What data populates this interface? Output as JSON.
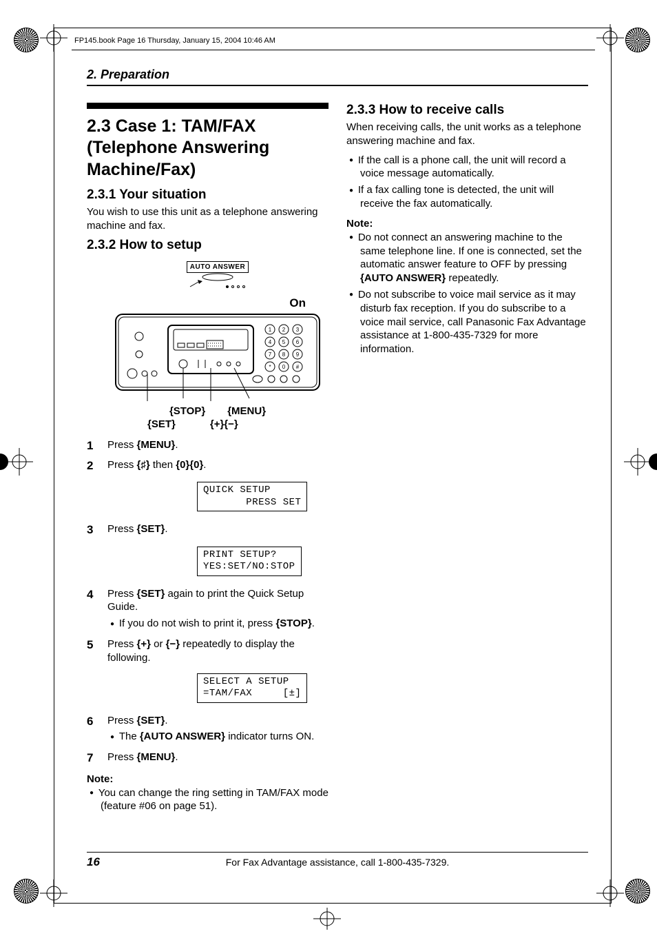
{
  "header": "FP145.book  Page 16  Thursday, January 15, 2004  10:46 AM",
  "chapter": "2. Preparation",
  "left": {
    "accent": true,
    "title": "2.3 Case 1: TAM/FAX (Telephone Answering Machine/Fax)",
    "s231_h": "2.3.1 Your situation",
    "s231_p": "You wish to use this unit as a telephone answering machine and fax.",
    "s232_h": "2.3.2 How to setup",
    "diagram": {
      "auto_answer": "AUTO  ANSWER",
      "on": "On",
      "btn_stop": "{STOP}",
      "btn_menu": "{MENU}",
      "btn_set": "{SET}",
      "btn_pm": "{+}{−}"
    },
    "steps2": [
      {
        "n": "1",
        "t": "Press {MENU}."
      },
      {
        "n": "2",
        "t": "Press {♯} then {0}{0}."
      }
    ],
    "lcd1": "QUICK SETUP\n       PRESS SET",
    "steps3": [
      {
        "n": "3",
        "t": "Press {SET}."
      }
    ],
    "lcd2": "PRINT SETUP?\nYES:SET/NO:STOP",
    "steps4": [
      {
        "n": "4",
        "t": "Press {SET} again to print the Quick Setup Guide.",
        "sub": [
          "If you do not wish to print it, press {STOP}."
        ]
      },
      {
        "n": "5",
        "t": "Press {+} or {−} repeatedly to display the following."
      }
    ],
    "lcd3": "SELECT A SETUP\n=TAM/FAX     [±]",
    "steps6": [
      {
        "n": "6",
        "t": "Press {SET}.",
        "sub": [
          "The {AUTO ANSWER} indicator turns ON."
        ]
      },
      {
        "n": "7",
        "t": "Press {MENU}."
      }
    ],
    "note_label": "Note:",
    "notes_left": [
      "You can change the ring setting in TAM/FAX mode (feature #06 on page 51)."
    ]
  },
  "right": {
    "s233_h": "2.3.3 How to receive calls",
    "s233_p": "When receiving calls, the unit works as a telephone answering machine and fax.",
    "s233_bullets": [
      "If the call is a phone call, the unit will record a voice message automatically.",
      "If a fax calling tone is detected, the unit will receive the fax automatically."
    ],
    "note_label": "Note:",
    "notes_right": [
      "Do not connect an answering machine to the same telephone line. If one is connected, set the automatic answer feature to OFF by pressing {AUTO ANSWER} repeatedly.",
      "Do not subscribe to voice mail service as it may disturb fax reception. If you do subscribe to a voice mail service, call Panasonic Fax Advantage assistance at 1-800-435-7329 for more information."
    ]
  },
  "footer": {
    "page": "16",
    "text": "For Fax Advantage assistance, call 1-800-435-7329."
  },
  "style": {
    "font_family": "Arial, Helvetica, sans-serif",
    "mono_family": "Courier New",
    "title_size": 25,
    "sub_size": 19,
    "body_size": 15,
    "lcd_border": "#000000",
    "accent_height": 9,
    "crop_border": "#000000"
  }
}
